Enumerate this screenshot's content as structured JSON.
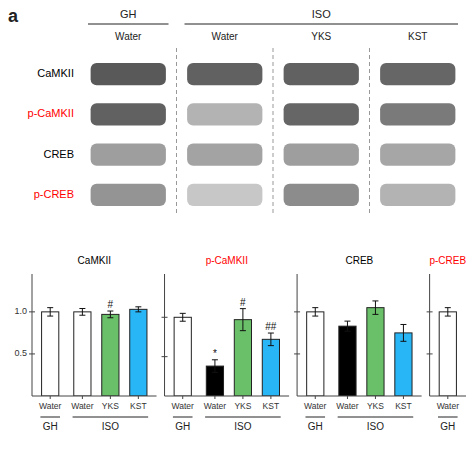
{
  "chart_data": [
    {
      "type": "heatmap",
      "title": "a",
      "categories": [
        "Water",
        "Water",
        "YKS",
        "KST"
      ],
      "groups": [
        "GH",
        "ISO",
        "ISO",
        "ISO"
      ],
      "series": [
        {
          "name": "CaMKII",
          "color": "black",
          "values": [
            0.35,
            0.38,
            0.38,
            0.4
          ]
        },
        {
          "name": "p-CaMKII",
          "color": "red",
          "values": [
            0.38,
            0.7,
            0.4,
            0.48
          ]
        },
        {
          "name": "CREB",
          "color": "black",
          "values": [
            0.62,
            0.64,
            0.62,
            0.65
          ]
        },
        {
          "name": "p-CREB",
          "color": "red",
          "values": [
            0.58,
            0.78,
            0.55,
            0.7
          ]
        }
      ]
    },
    {
      "type": "bar",
      "title": "CaMKII",
      "categories": [
        "Water",
        "Water",
        "YKS",
        "KST"
      ],
      "groups": [
        "GH",
        "ISO",
        "ISO",
        "ISO"
      ],
      "values": [
        1.0,
        1.0,
        0.97,
        1.03
      ],
      "errors": [
        0.05,
        0.04,
        0.04,
        0.03
      ],
      "colors": [
        "white",
        "white",
        "#6abf69",
        "#29b6f6"
      ],
      "annotations": [
        null,
        null,
        "#",
        null
      ],
      "ylim": [
        0,
        1.45
      ],
      "yticks": [
        0.5,
        {
          "value": 1.0,
          "label": "1.0"
        }
      ]
    },
    {
      "type": "bar",
      "title": "p-CaMKII",
      "categories": [
        "Water",
        "Water",
        "YKS",
        "KST"
      ],
      "groups": [
        "GH",
        "ISO",
        "ISO",
        "ISO"
      ],
      "values": [
        1.0,
        0.38,
        0.97,
        0.72
      ],
      "errors": [
        0.05,
        0.08,
        0.14,
        0.08
      ],
      "colors": [
        "white",
        "black",
        "#6abf69",
        "#29b6f6"
      ],
      "annotations": [
        null,
        "*",
        "#",
        "##"
      ],
      "ylim": [
        0,
        1.55
      ],
      "yticks": [
        0.5,
        1.0
      ],
      "tick_labels": "x"
    },
    {
      "type": "bar",
      "title": "CREB",
      "categories": [
        "Water",
        "Water",
        "YKS",
        "KST"
      ],
      "groups": [
        "GH",
        "ISO",
        "ISO",
        "ISO"
      ],
      "values": [
        1.0,
        0.83,
        1.05,
        0.75
      ],
      "errors": [
        0.05,
        0.06,
        0.08,
        0.1
      ],
      "colors": [
        "white",
        "black",
        "#6abf69",
        "#29b6f6"
      ],
      "ylim": [
        0,
        1.45
      ],
      "yticks": [
        0.5,
        1.0
      ],
      "tick_labels": "x"
    },
    {
      "type": "bar",
      "title": "p-CREB",
      "categories": [
        "Water"
      ],
      "groups": [
        "GH"
      ],
      "values": [
        1.0
      ],
      "errors": [
        0.05
      ],
      "colors": [
        "white"
      ],
      "ylim": [
        0,
        1.45
      ],
      "yticks": [
        0.5,
        1.0
      ],
      "tick_labels": "x"
    }
  ]
}
